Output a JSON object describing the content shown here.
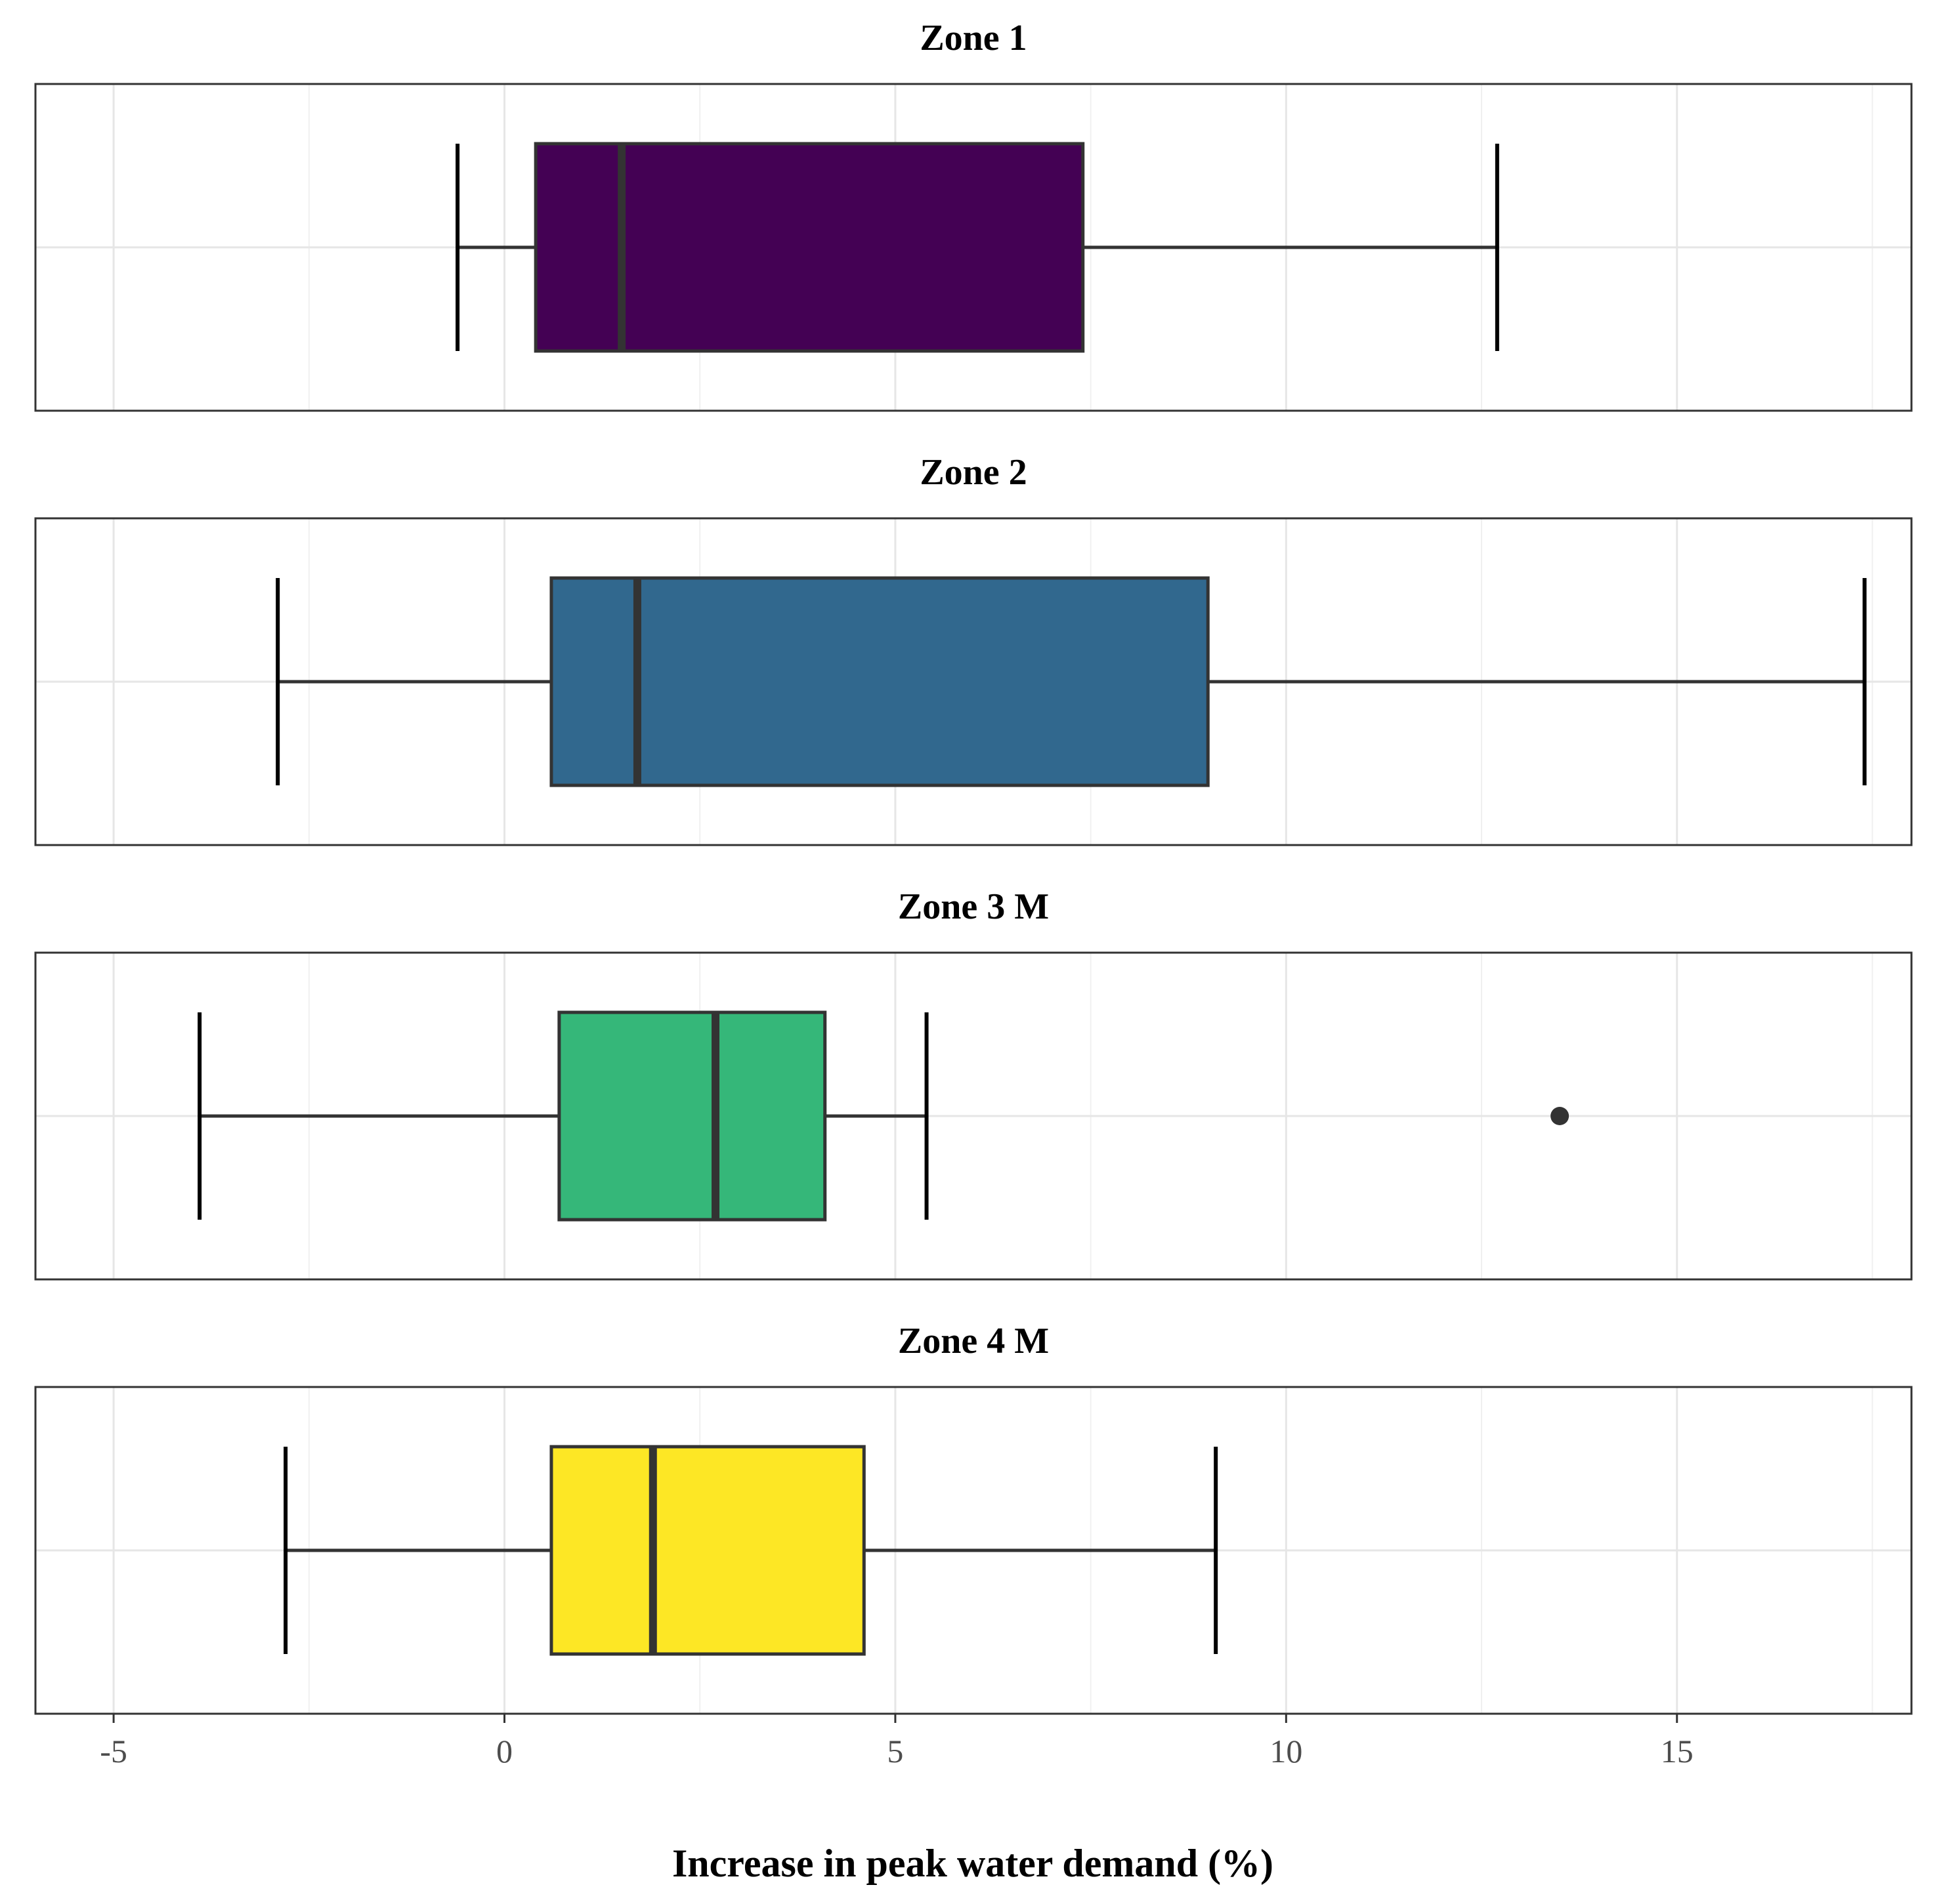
{
  "chart_data": {
    "type": "box",
    "orientation": "horizontal",
    "xlabel": "Increase in peak water demand (%)",
    "xlim": [
      -6.0,
      18.0
    ],
    "xticks": [
      -5,
      0,
      5,
      10,
      15
    ],
    "xtick_labels": [
      "-5",
      "0",
      "5",
      "10",
      "15"
    ],
    "grid": true,
    "panels": [
      {
        "title": "Zone 1",
        "color": "#440154",
        "min": -0.6,
        "q1": 0.4,
        "median": 1.5,
        "q3": 7.4,
        "max": 12.7,
        "outliers": []
      },
      {
        "title": "Zone 2",
        "color": "#31688E",
        "min": -2.9,
        "q1": 0.6,
        "median": 1.7,
        "q3": 9.0,
        "max": 17.4,
        "outliers": []
      },
      {
        "title": "Zone 3 M",
        "color": "#35B779",
        "min": -3.9,
        "q1": 0.7,
        "median": 2.7,
        "q3": 4.1,
        "max": 5.4,
        "outliers": [
          13.5
        ]
      },
      {
        "title": "Zone 4 M",
        "color": "#FDE725",
        "min": -2.8,
        "q1": 0.6,
        "median": 1.9,
        "q3": 4.6,
        "max": 9.1,
        "outliers": []
      }
    ]
  }
}
